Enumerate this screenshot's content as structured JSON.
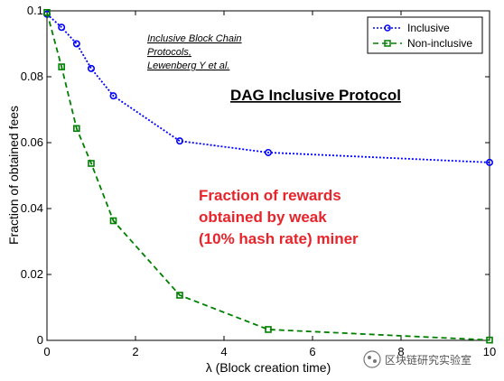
{
  "chart_data": {
    "type": "line",
    "xlabel": "λ (Block creation time)",
    "ylabel": "Fraction of obtained fees",
    "xlim": [
      0,
      10
    ],
    "ylim": [
      0,
      0.1
    ],
    "x_ticks": [
      "0",
      "2",
      "4",
      "6",
      "8",
      "10"
    ],
    "y_ticks": [
      "0",
      "0.02",
      "0.04",
      "0.06",
      "0.08",
      "0.1"
    ],
    "grid": false,
    "legend_position": "top-right",
    "series": [
      {
        "name": "Inclusive",
        "color": "#0000ff",
        "marker": "circle",
        "line_style": "dotted",
        "x": [
          0,
          0.33,
          0.67,
          1,
          1.5,
          3,
          5,
          10
        ],
        "y": [
          0.099,
          0.095,
          0.09,
          0.0825,
          0.0742,
          0.0605,
          0.057,
          0.054
        ]
      },
      {
        "name": "Non-inclusive",
        "color": "#008000",
        "marker": "square",
        "line_style": "dashed",
        "x": [
          0,
          0.33,
          0.67,
          1,
          1.5,
          3,
          5,
          10
        ],
        "y": [
          0.0995,
          0.083,
          0.0643,
          0.0537,
          0.0363,
          0.0137,
          0.0033,
          0.0001
        ]
      }
    ],
    "annotations": {
      "citation": [
        "Inclusive Block Chain",
        "Protocols,",
        "Lewenberg Y et al."
      ],
      "headline": "DAG Inclusive Protocol",
      "note": [
        "Fraction of rewards",
        "obtained by weak",
        "(10% hash rate) miner"
      ],
      "note_color": "#e8242b"
    },
    "watermark": "区块链研究实验室"
  }
}
